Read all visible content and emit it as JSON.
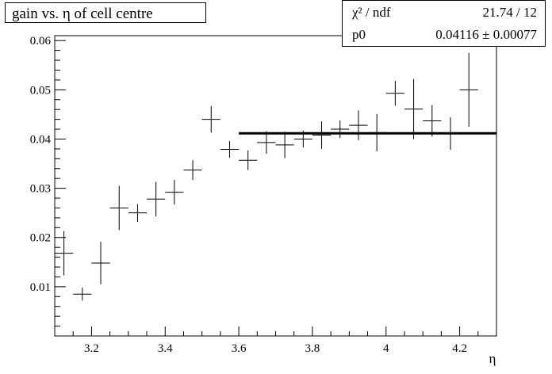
{
  "chart_data": {
    "type": "scatter",
    "title": "gain vs. η of cell centre",
    "xlabel": "η",
    "ylabel": "",
    "xlim": [
      3.1,
      4.3
    ],
    "ylim": [
      0.0,
      0.061
    ],
    "x_ticks": [
      3.2,
      3.4,
      3.6,
      3.8,
      4.0,
      4.2
    ],
    "x_tick_labels": [
      "3.2",
      "3.4",
      "3.6",
      "3.8",
      "4",
      "4.2"
    ],
    "y_ticks": [
      0.01,
      0.02,
      0.03,
      0.04,
      0.05,
      0.06
    ],
    "y_tick_labels": [
      "0.01",
      "0.02",
      "0.03",
      "0.04",
      "0.05",
      "0.06"
    ],
    "grid": false,
    "series": [
      {
        "x": [
          3.125,
          3.175,
          3.225,
          3.275,
          3.325,
          3.375,
          3.425,
          3.475,
          3.525,
          3.575,
          3.625,
          3.675,
          3.725,
          3.775,
          3.825,
          3.875,
          3.925,
          3.975,
          4.025,
          4.075,
          4.125,
          4.175,
          4.225
        ],
        "y": [
          0.0168,
          0.0085,
          0.0148,
          0.026,
          0.025,
          0.0278,
          0.0292,
          0.0337,
          0.044,
          0.0379,
          0.0357,
          0.0393,
          0.0388,
          0.04,
          0.0408,
          0.042,
          0.0428,
          0.0413,
          0.0493,
          0.0461,
          0.0437,
          0.0411,
          0.05
        ],
        "yerr": [
          0.0045,
          0.0013,
          0.0043,
          0.0045,
          0.0018,
          0.0035,
          0.0025,
          0.002,
          0.0027,
          0.0017,
          0.002,
          0.0023,
          0.0027,
          0.0017,
          0.0028,
          0.0018,
          0.003,
          0.0038,
          0.0025,
          0.0061,
          0.0032,
          0.0033,
          0.0075
        ],
        "xerr": 0.025
      }
    ],
    "fit": {
      "x_start": 3.6,
      "x_end": 4.3,
      "y": 0.04116
    }
  },
  "stats": {
    "chi2_label": "χ² / ndf",
    "chi2_value": "21.74 / 12",
    "p0_label": "p0",
    "p0_value": "0.04116 ± 0.00077"
  }
}
